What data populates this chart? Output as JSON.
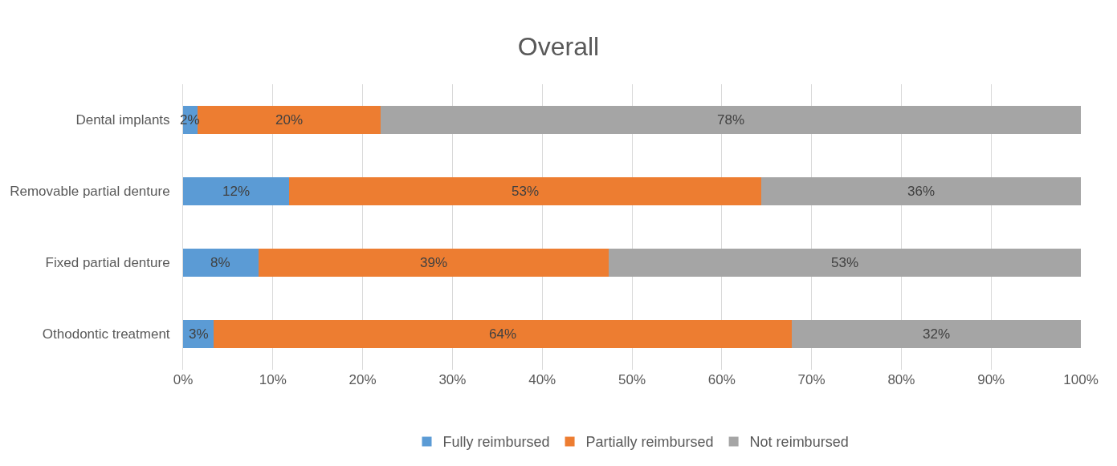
{
  "chart_data": {
    "type": "bar",
    "title": "Overall",
    "orientation": "horizontal",
    "stacked": true,
    "categories": [
      "Dental implants",
      "Removable partial denture",
      "Fixed partial denture",
      "Othodontic treatment"
    ],
    "series": [
      {
        "name": "Fully reimbursed",
        "color": "#5b9bd5",
        "values": [
          1.6,
          11.8,
          8.4,
          3.4
        ],
        "value_labels": [
          "2%",
          "12%",
          "8%",
          "3%"
        ]
      },
      {
        "name": "Partially reimbursed",
        "color": "#ed7d31",
        "values": [
          20.4,
          52.6,
          39.0,
          64.4
        ],
        "value_labels": [
          "20%",
          "53%",
          "39%",
          "64%"
        ]
      },
      {
        "name": "Not reimbursed",
        "color": "#a5a5a5",
        "values": [
          78.0,
          35.6,
          52.6,
          32.2
        ],
        "value_labels": [
          "78%",
          "36%",
          "53%",
          "32%"
        ]
      }
    ],
    "xlim": [
      0,
      100
    ],
    "xticks": [
      {
        "value": 0,
        "label": "0%"
      },
      {
        "value": 10,
        "label": "10%"
      },
      {
        "value": 20,
        "label": "20%"
      },
      {
        "value": 30,
        "label": "30%"
      },
      {
        "value": 40,
        "label": "40%"
      },
      {
        "value": 50,
        "label": "50%"
      },
      {
        "value": 60,
        "label": "60%"
      },
      {
        "value": 70,
        "label": "70%"
      },
      {
        "value": 80,
        "label": "80%"
      },
      {
        "value": 90,
        "label": "90%"
      },
      {
        "value": 100,
        "label": "100%"
      }
    ],
    "grid": "x",
    "legend": "bottom"
  }
}
